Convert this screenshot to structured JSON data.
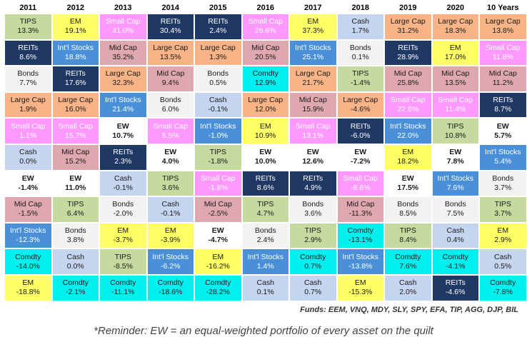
{
  "chart_data": {
    "type": "table",
    "columns": [
      "2011",
      "2012",
      "2013",
      "2014",
      "2015",
      "2016",
      "2017",
      "2018",
      "2019",
      "2020",
      "10 Years"
    ],
    "asset_colors": {
      "TIPS": "#c6d99f",
      "EM": "#ffff66",
      "Small Cap": "#ff99ff",
      "REITs": "#1f3864",
      "Cash": "#c5d5ef",
      "Large Cap": "#f8b486",
      "Int'l Stocks": "#4a90d9",
      "Mid Cap": "#dfa8b0",
      "Bonds": "#f2f2f2",
      "Comdty": "#00f0f0",
      "EW": "#ffffff"
    },
    "light_text_assets": [
      "REITs",
      "Int'l Stocks",
      "Small Cap"
    ],
    "rows": [
      [
        {
          "name": "TIPS",
          "value": "13.3%"
        },
        {
          "name": "EM",
          "value": "19.1%"
        },
        {
          "name": "Small Cap",
          "value": "41.0%"
        },
        {
          "name": "REITs",
          "value": "30.4%"
        },
        {
          "name": "REITs",
          "value": "2.4%"
        },
        {
          "name": "Small Cap",
          "value": "26.6%"
        },
        {
          "name": "EM",
          "value": "37.3%"
        },
        {
          "name": "Cash",
          "value": "1.7%"
        },
        {
          "name": "Large Cap",
          "value": "31.2%"
        },
        {
          "name": "Large Cap",
          "value": "18.3%"
        },
        {
          "name": "Large Cap",
          "value": "13.8%"
        }
      ],
      [
        {
          "name": "REITs",
          "value": "8.6%"
        },
        {
          "name": "Int'l Stocks",
          "value": "18.8%"
        },
        {
          "name": "Mid Cap",
          "value": "35.2%"
        },
        {
          "name": "Large Cap",
          "value": "13.5%"
        },
        {
          "name": "Large Cap",
          "value": "1.3%"
        },
        {
          "name": "Mid Cap",
          "value": "20.5%"
        },
        {
          "name": "Int'l Stocks",
          "value": "25.1%"
        },
        {
          "name": "Bonds",
          "value": "0.1%"
        },
        {
          "name": "REITs",
          "value": "28.9%"
        },
        {
          "name": "EM",
          "value": "17.0%"
        },
        {
          "name": "Small Cap",
          "value": "11.8%"
        }
      ],
      [
        {
          "name": "Bonds",
          "value": "7.7%"
        },
        {
          "name": "REITs",
          "value": "17.6%"
        },
        {
          "name": "Large Cap",
          "value": "32.3%"
        },
        {
          "name": "Mid Cap",
          "value": "9.4%"
        },
        {
          "name": "Bonds",
          "value": "0.5%"
        },
        {
          "name": "Comdty",
          "value": "12.9%"
        },
        {
          "name": "Large Cap",
          "value": "21.7%"
        },
        {
          "name": "TIPS",
          "value": "-1.4%"
        },
        {
          "name": "Mid Cap",
          "value": "25.8%"
        },
        {
          "name": "Mid Cap",
          "value": "13.5%"
        },
        {
          "name": "Mid Cap",
          "value": "11.2%"
        }
      ],
      [
        {
          "name": "Large Cap",
          "value": "1.9%"
        },
        {
          "name": "Large Cap",
          "value": "16.0%"
        },
        {
          "name": "Int'l Stocks",
          "value": "21.4%"
        },
        {
          "name": "Bonds",
          "value": "6.0%"
        },
        {
          "name": "Cash",
          "value": "-0.1%"
        },
        {
          "name": "Large Cap",
          "value": "12.0%"
        },
        {
          "name": "Mid Cap",
          "value": "15.9%"
        },
        {
          "name": "Large Cap",
          "value": "-4.6%"
        },
        {
          "name": "Small Cap",
          "value": "22.6%"
        },
        {
          "name": "Small Cap",
          "value": "11.4%"
        },
        {
          "name": "REITs",
          "value": "8.7%"
        }
      ],
      [
        {
          "name": "Small Cap",
          "value": "1.1%"
        },
        {
          "name": "Small Cap",
          "value": "15.7%"
        },
        {
          "name": "EW",
          "value": "10.7%"
        },
        {
          "name": "Small Cap",
          "value": "5.5%"
        },
        {
          "name": "Int'l Stocks",
          "value": "-1.0%"
        },
        {
          "name": "EM",
          "value": "10.9%"
        },
        {
          "name": "Small Cap",
          "value": "13.1%"
        },
        {
          "name": "REITs",
          "value": "-6.0%"
        },
        {
          "name": "Int'l Stocks",
          "value": "22.0%"
        },
        {
          "name": "TIPS",
          "value": "10.8%"
        },
        {
          "name": "EW",
          "value": "5.7%"
        }
      ],
      [
        {
          "name": "Cash",
          "value": "0.0%"
        },
        {
          "name": "Mid Cap",
          "value": "15.2%"
        },
        {
          "name": "REITs",
          "value": "2.3%"
        },
        {
          "name": "EW",
          "value": "4.0%"
        },
        {
          "name": "TIPS",
          "value": "-1.8%"
        },
        {
          "name": "EW",
          "value": "10.0%"
        },
        {
          "name": "EW",
          "value": "12.6%"
        },
        {
          "name": "EW",
          "value": "-7.2%"
        },
        {
          "name": "EM",
          "value": "18.2%"
        },
        {
          "name": "EW",
          "value": "7.8%"
        },
        {
          "name": "Int'l Stocks",
          "value": "5.4%"
        }
      ],
      [
        {
          "name": "EW",
          "value": "-1.4%"
        },
        {
          "name": "EW",
          "value": "11.0%"
        },
        {
          "name": "Cash",
          "value": "-0.1%"
        },
        {
          "name": "TIPS",
          "value": "3.6%"
        },
        {
          "name": "Small Cap",
          "value": "-1.8%"
        },
        {
          "name": "REITs",
          "value": "8.6%"
        },
        {
          "name": "REITs",
          "value": "4.9%"
        },
        {
          "name": "Small Cap",
          "value": "-8.6%"
        },
        {
          "name": "EW",
          "value": "17.5%"
        },
        {
          "name": "Int'l Stocks",
          "value": "7.6%"
        },
        {
          "name": "Bonds",
          "value": "3.7%"
        }
      ],
      [
        {
          "name": "Mid Cap",
          "value": "-1.5%"
        },
        {
          "name": "TIPS",
          "value": "6.4%"
        },
        {
          "name": "Bonds",
          "value": "-2.0%"
        },
        {
          "name": "Cash",
          "value": "-0.1%"
        },
        {
          "name": "Mid Cap",
          "value": "-2.5%"
        },
        {
          "name": "TIPS",
          "value": "4.7%"
        },
        {
          "name": "Bonds",
          "value": "3.6%"
        },
        {
          "name": "Mid Cap",
          "value": "-11.3%"
        },
        {
          "name": "Bonds",
          "value": "8.5%"
        },
        {
          "name": "Bonds",
          "value": "7.5%"
        },
        {
          "name": "TIPS",
          "value": "3.7%"
        }
      ],
      [
        {
          "name": "Int'l Stocks",
          "value": "-12.3%"
        },
        {
          "name": "Bonds",
          "value": "3.8%"
        },
        {
          "name": "EM",
          "value": "-3.7%"
        },
        {
          "name": "EM",
          "value": "-3.9%"
        },
        {
          "name": "EW",
          "value": "-4.7%"
        },
        {
          "name": "Bonds",
          "value": "2.4%"
        },
        {
          "name": "TIPS",
          "value": "2.9%"
        },
        {
          "name": "Comdty",
          "value": "-13.1%"
        },
        {
          "name": "TIPS",
          "value": "8.4%"
        },
        {
          "name": "Cash",
          "value": "0.4%"
        },
        {
          "name": "EM",
          "value": "2.9%"
        }
      ],
      [
        {
          "name": "Comdty",
          "value": "-14.0%"
        },
        {
          "name": "Cash",
          "value": "0.0%"
        },
        {
          "name": "TIPS",
          "value": "-8.5%"
        },
        {
          "name": "Int'l Stocks",
          "value": "-6.2%"
        },
        {
          "name": "EM",
          "value": "-16.2%"
        },
        {
          "name": "Int'l Stocks",
          "value": "1.4%"
        },
        {
          "name": "Comdty",
          "value": "0.7%"
        },
        {
          "name": "Int'l Stocks",
          "value": "-13.8%"
        },
        {
          "name": "Comdty",
          "value": "7.6%"
        },
        {
          "name": "Comdty",
          "value": "-4.1%"
        },
        {
          "name": "Cash",
          "value": "0.5%"
        }
      ],
      [
        {
          "name": "EM",
          "value": "-18.8%"
        },
        {
          "name": "Comdty",
          "value": "-2.1%"
        },
        {
          "name": "Comdty",
          "value": "-11.1%"
        },
        {
          "name": "Comdty",
          "value": "-18.6%"
        },
        {
          "name": "Comdty",
          "value": "-28.2%"
        },
        {
          "name": "Cash",
          "value": "0.1%"
        },
        {
          "name": "Cash",
          "value": "0.7%"
        },
        {
          "name": "EM",
          "value": "-15.3%"
        },
        {
          "name": "Cash",
          "value": "2.0%"
        },
        {
          "name": "REITs",
          "value": "-4.6%"
        },
        {
          "name": "Comdty",
          "value": "-7.8%"
        }
      ]
    ]
  },
  "source_note": "Funds: EEM, VNQ, MDY, SLY, SPY, EFA, TIP, AGG, DJP, BIL",
  "footnote": "*Reminder: EW = an equal-weighted portfolio of every asset on the quilt"
}
